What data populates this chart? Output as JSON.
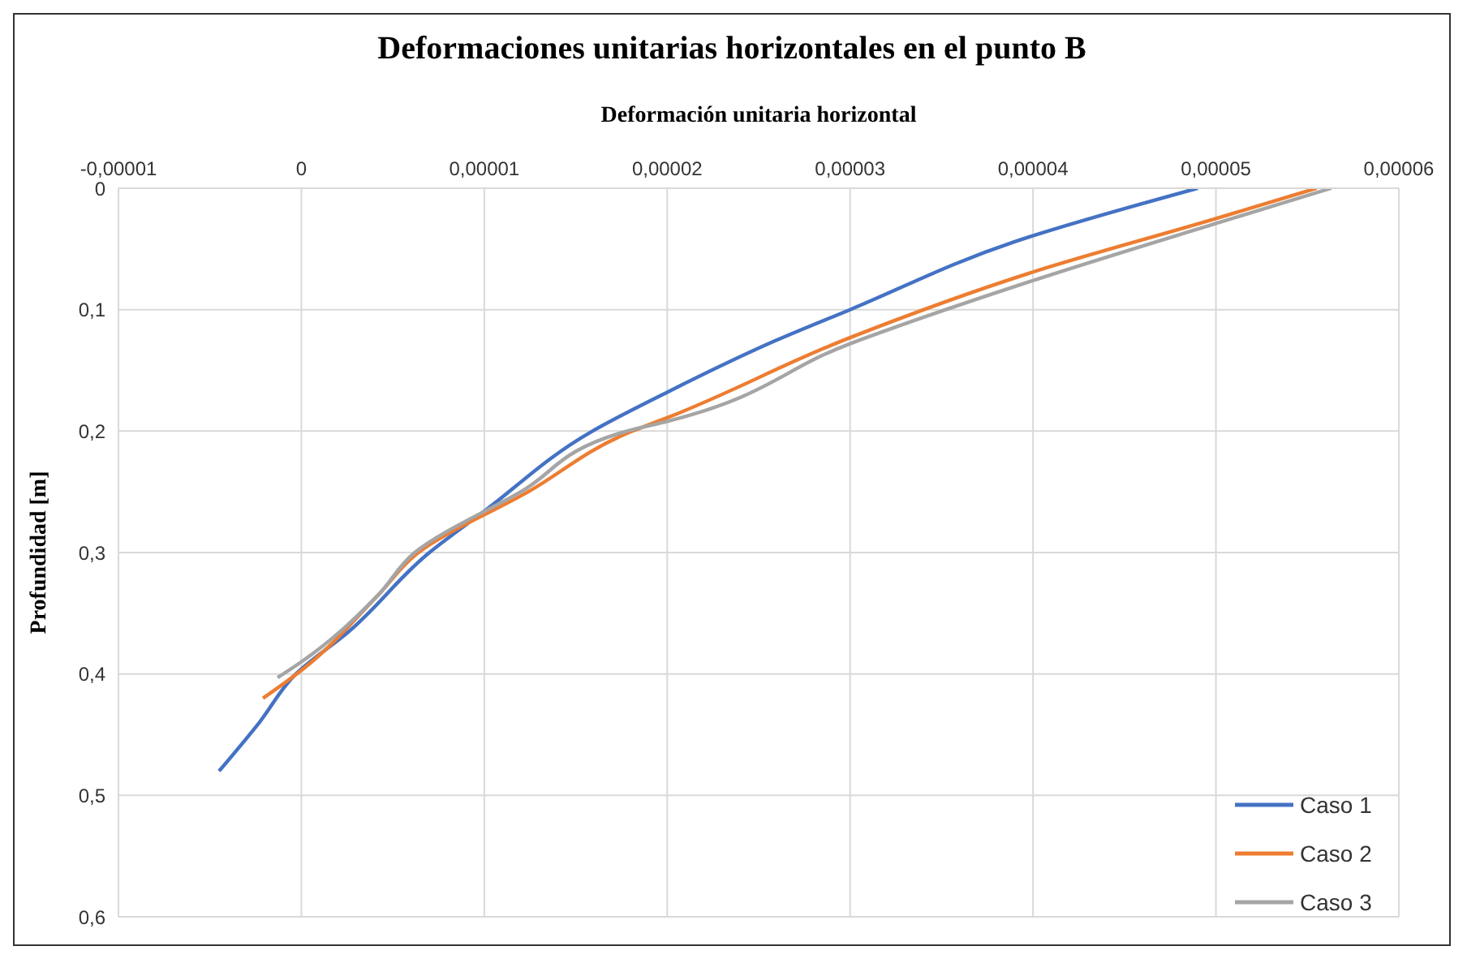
{
  "chart_data": {
    "type": "line",
    "title": "Deformaciones unitarias horizontales en el punto B",
    "xlabel": "Deformación unitaria horizontal",
    "ylabel": "Profundidad [m]",
    "xlim": [
      -1e-05,
      6e-05
    ],
    "xticks": [
      {
        "value": -1e-05,
        "label": "-0,00001"
      },
      {
        "value": 0,
        "label": "0"
      },
      {
        "value": 1e-05,
        "label": "0,00001"
      },
      {
        "value": 2e-05,
        "label": "0,00002"
      },
      {
        "value": 3e-05,
        "label": "0,00003"
      },
      {
        "value": 4e-05,
        "label": "0,00004"
      },
      {
        "value": 5e-05,
        "label": "0,00005"
      },
      {
        "value": 6e-05,
        "label": "0,00006"
      }
    ],
    "ylim": [
      0.6,
      0
    ],
    "yticks": [
      {
        "value": 0,
        "label": "0"
      },
      {
        "value": 0.1,
        "label": "0,1"
      },
      {
        "value": 0.2,
        "label": "0,2"
      },
      {
        "value": 0.3,
        "label": "0,3"
      },
      {
        "value": 0.4,
        "label": "0,4"
      },
      {
        "value": 0.5,
        "label": "0,5"
      },
      {
        "value": 0.6,
        "label": "0,6"
      }
    ],
    "grid": true,
    "legend": "bottom right",
    "marker": "none",
    "line_style": "solid",
    "series": [
      {
        "name": "Caso 1",
        "color": "#4472c4",
        "x": [
          4.9e-05,
          3.9e-05,
          3e-05,
          2.6e-05,
          2e-05,
          1.58e-05,
          1e-05,
          7e-06,
          2.6e-06,
          -3e-07,
          -2.3e-06,
          -4.5e-06
        ],
        "values": [
          0,
          0.044,
          0.1,
          0.125,
          0.168,
          0.201,
          0.266,
          0.3,
          0.365,
          0.4,
          0.44,
          0.48
        ]
      },
      {
        "name": "Caso 2",
        "color": "#ed7d31",
        "x": [
          5.55e-05,
          5e-05,
          4e-05,
          3e-05,
          2e-05,
          1.81e-05,
          1.24e-05,
          6.4e-06,
          4.2e-06,
          0,
          -2.1e-06
        ],
        "values": [
          0,
          0.025,
          0.069,
          0.123,
          0.189,
          0.2,
          0.25,
          0.3,
          0.335,
          0.397,
          0.42
        ]
      },
      {
        "name": "Caso 3",
        "color": "#a5a5a5",
        "x": [
          5.63e-05,
          5e-05,
          4e-05,
          3e-05,
          2e-05,
          1.78e-05,
          1.2e-05,
          6.2e-06,
          4.2e-06,
          0,
          -1.3e-06
        ],
        "values": [
          0,
          0.029,
          0.076,
          0.128,
          0.192,
          0.2,
          0.25,
          0.3,
          0.335,
          0.39,
          0.403
        ]
      }
    ]
  }
}
